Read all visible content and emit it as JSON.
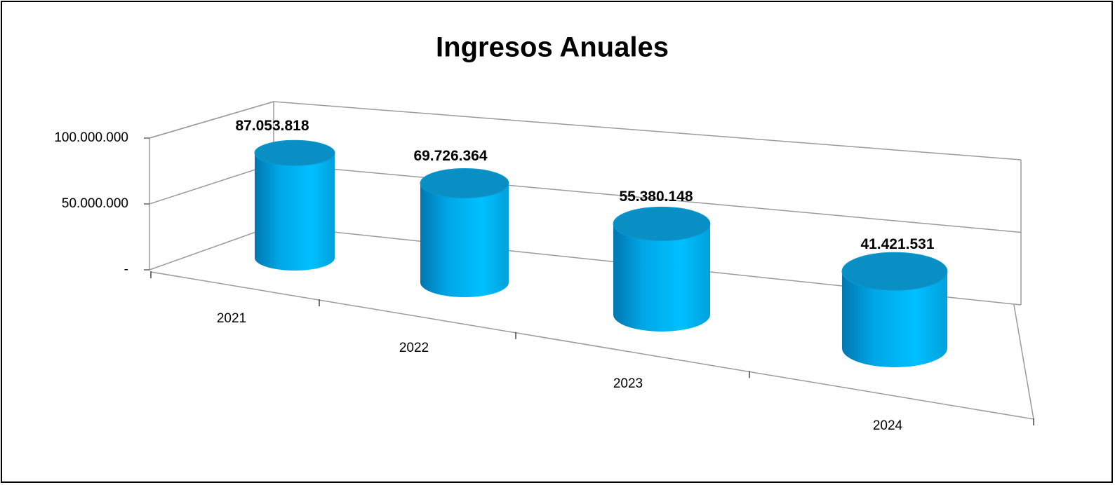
{
  "chart_data": {
    "type": "cylinder",
    "title": "Ingresos Anuales",
    "categories": [
      "2021",
      "2022",
      "2023",
      "2024"
    ],
    "values": [
      87053818,
      69726364,
      55380148,
      41421531
    ],
    "value_labels": [
      "87.053.818",
      "69.726.364",
      "55.380.148",
      "41.421.531"
    ],
    "color": "#00b0f0",
    "ylim": [
      0,
      100000000
    ],
    "yticks": [
      {
        "value": 0,
        "label": "-"
      },
      {
        "value": 50000000,
        "label": "50.000.000"
      },
      {
        "value": 100000000,
        "label": "100.000.000"
      }
    ],
    "grid": true
  }
}
